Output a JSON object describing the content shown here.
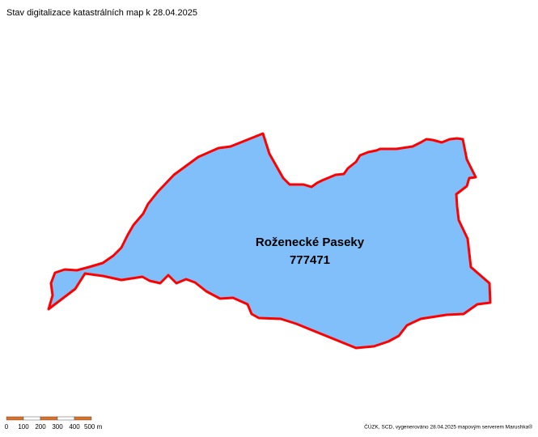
{
  "header": {
    "title": "Stav digitalizace katastrálních map k 28.04.2025"
  },
  "region": {
    "name": "Roženecké Paseky",
    "code": "777471"
  },
  "scale_bar": {
    "labels": [
      "0",
      "100",
      "200",
      "300",
      "400",
      "500 m"
    ]
  },
  "footer": {
    "attribution": "ČÚZK, SCD, vygenerováno 28.04.2025 mapovým serverem Marushka®"
  }
}
